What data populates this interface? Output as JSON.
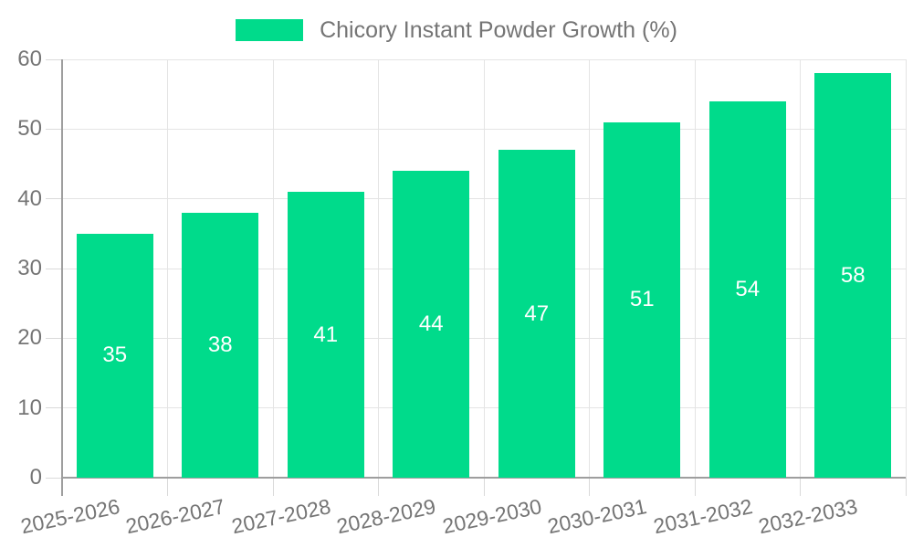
{
  "legend": {
    "label": "Chicory Instant Powder Growth (%)"
  },
  "chart_data": {
    "type": "bar",
    "title": "Chicory Instant Powder Growth (%)",
    "series_name": "Chicory Instant Powder Growth (%)",
    "categories": [
      "2025-2026",
      "2026-2027",
      "2027-2028",
      "2028-2029",
      "2029-2030",
      "2030-2031",
      "2031-2032",
      "2032-2033"
    ],
    "values": [
      35,
      38,
      41,
      44,
      47,
      51,
      54,
      58
    ],
    "value_labels_shown": [
      35,
      38,
      41,
      44,
      47,
      51,
      54,
      58
    ],
    "xlabel": "",
    "ylabel": "",
    "ylim": [
      0,
      60
    ],
    "yticks": [
      0,
      10,
      20,
      30,
      40,
      50,
      60
    ],
    "grid": true,
    "legend_position": "top-center",
    "value_label_position": "inside-middle",
    "x_label_rotation_deg": -12,
    "colors": {
      "bar": "#00DB8B",
      "bar_value_label": "#FFFFFF",
      "axis_line": "#9E9E9E",
      "gridline": "#E4E4E4",
      "tick": "#DADADA",
      "axis_label_text": "#757575",
      "legend_text": "#757575",
      "background": "#FFFFFF"
    }
  }
}
